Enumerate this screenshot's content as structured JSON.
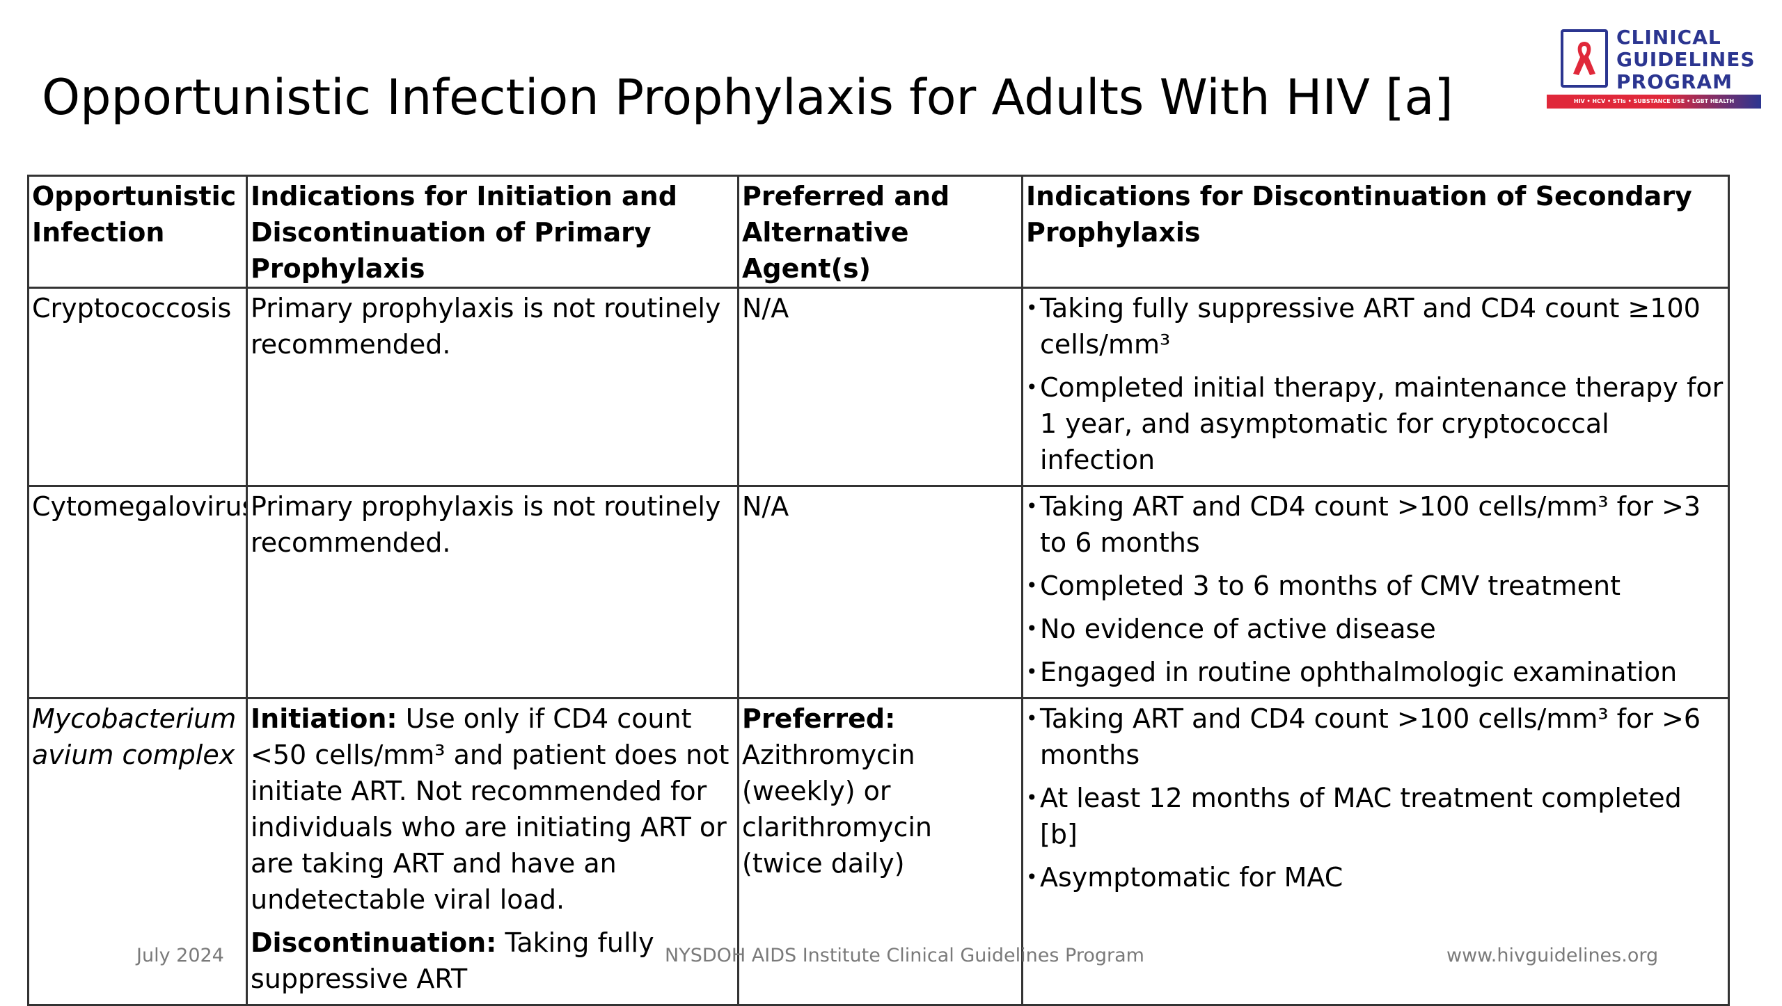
{
  "title": "Opportunistic Infection Prophylaxis for Adults With HIV [a]",
  "logo": {
    "line1": "CLINICAL",
    "line2": "GUIDELINES",
    "line3": "PROGRAM",
    "tagline": "HIV • HCV • STIs • SUBSTANCE USE • LGBT HEALTH",
    "brand_color": "#2b3590",
    "accent_color": "#e0283a",
    "icon": "red-ribbon-icon"
  },
  "table": {
    "headers": [
      "Opportunistic Infection",
      "Indications for Initiation and Discontinuation of Primary Prophylaxis",
      "Preferred and Alternative Agent(s)",
      "Indications for Discontinuation of Secondary Prophylaxis"
    ],
    "rows": [
      {
        "infection": "Cryptococcosis",
        "primary": "Primary prophylaxis is not routinely recommended.",
        "agents": "N/A",
        "secondary": [
          "Taking fully suppressive ART and CD4 count ≥100 cells/mm³",
          "Completed initial therapy, maintenance therapy for 1 year, and asymptomatic for cryptococcal infection"
        ]
      },
      {
        "infection": "Cytomegalovirus",
        "primary": "Primary prophylaxis is not routinely recommended.",
        "agents": "N/A",
        "secondary": [
          "Taking ART and CD4 count >100 cells/mm³ for >3 to 6 months",
          "Completed 3 to 6 months of CMV treatment",
          "No evidence of active disease",
          "Engaged in routine ophthalmologic examination"
        ]
      },
      {
        "infection": "Mycobacterium avium complex",
        "initiation_label": "Initiation:",
        "initiation_text": "Use only if CD4 count <50 cells/mm³ and patient does not initiate ART. Not recommended for individuals who are initiating ART or are taking ART and have an undetectable viral load.",
        "discontinuation_label": "Discontinuation:",
        "discontinuation_text": "Taking fully suppressive ART",
        "agents_label": "Preferred:",
        "agents": "Azithromycin (weekly) or clarithromycin (twice daily)",
        "secondary": [
          "Taking ART and CD4 count >100 cells/mm³ for >6 months",
          "At least 12 months of MAC treatment completed [b]",
          "Asymptomatic for MAC"
        ]
      }
    ]
  },
  "footer": {
    "date": "July 2024",
    "program": "NYSDOH AIDS Institute Clinical Guidelines Program",
    "url": "www.hivguidelines.org"
  }
}
